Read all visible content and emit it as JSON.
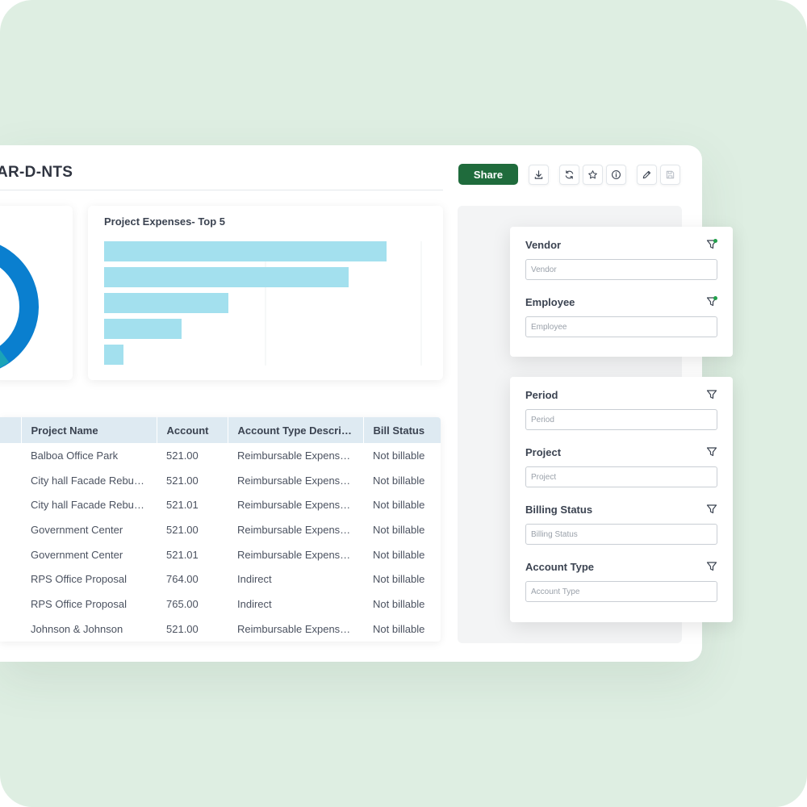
{
  "dashboard": {
    "title": "AR-D-NTS",
    "share_label": "Share",
    "toolbar_icons": [
      "download-icon",
      "refresh-icon",
      "star-icon",
      "info-icon",
      "edit-icon",
      "save-icon"
    ]
  },
  "colors": {
    "background": "#deeee2",
    "share_button": "#1f6b3c",
    "bar": "#a3e0ee",
    "donut_primary": "#0a7fcf",
    "donut_secondary": "#1aa3b8",
    "table_header": "#deeaf2",
    "filter_active_dot": "#22a04b"
  },
  "chart_data": {
    "type": "bar",
    "title": "Project Expenses- Top 5",
    "orientation": "horizontal",
    "categories": [
      "",
      "",
      "",
      "",
      ""
    ],
    "values": [
      350,
      303,
      154,
      96,
      24
    ],
    "xlim": [
      0,
      400
    ],
    "grid": true
  },
  "table": {
    "columns": [
      "Project Name",
      "Account",
      "Account Type Descri…",
      "Bill Status"
    ],
    "rows": [
      [
        "Balboa Office Park",
        "521.00",
        "Reimbursable Expens…",
        "Not billable"
      ],
      [
        "City hall Facade Rebu…",
        "521.00",
        "Reimbursable Expens…",
        "Not billable"
      ],
      [
        "City hall Facade Rebu…",
        "521.01",
        "Reimbursable Expens…",
        "Not billable"
      ],
      [
        "Government Center",
        "521.00",
        "Reimbursable Expens…",
        "Not billable"
      ],
      [
        "Government Center",
        "521.01",
        "Reimbursable Expens…",
        "Not billable"
      ],
      [
        "RPS Office Proposal",
        "764.00",
        "Indirect",
        "Not billable"
      ],
      [
        "RPS Office Proposal",
        "765.00",
        "Indirect",
        "Not billable"
      ],
      [
        "Johnson & Johnson",
        "521.00",
        "Reimbursable Expens…",
        "Not billable"
      ]
    ]
  },
  "filters": {
    "vendor": {
      "label": "Vendor",
      "placeholder": "Vendor"
    },
    "employee": {
      "label": "Employee",
      "placeholder": "Employee"
    },
    "period": {
      "label": "Period",
      "placeholder": "Period"
    },
    "project": {
      "label": "Project",
      "placeholder": "Project"
    },
    "billing_status": {
      "label": "Billing Status",
      "placeholder": "Billing Status"
    },
    "account_type": {
      "label": "Account Type",
      "placeholder": "Account Type"
    }
  }
}
